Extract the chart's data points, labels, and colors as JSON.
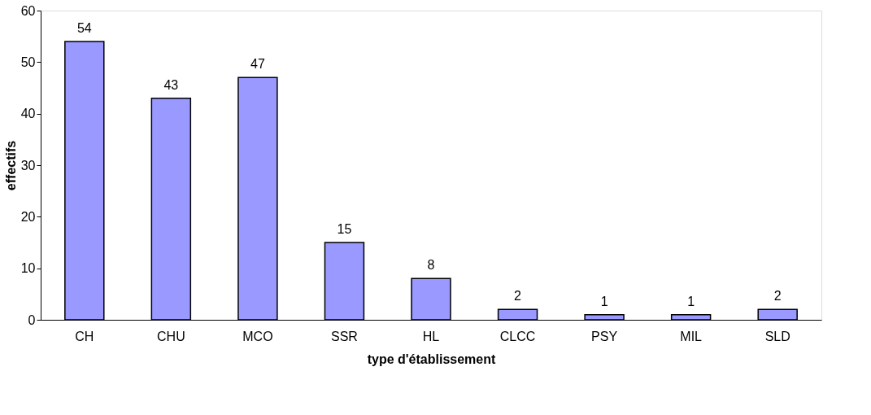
{
  "chart_data": {
    "type": "bar",
    "xlabel": "type d'établissement",
    "ylabel": "effectifs",
    "categories": [
      "CH",
      "CHU",
      "MCO",
      "SSR",
      "HL",
      "CLCC",
      "PSY",
      "MIL",
      "SLD"
    ],
    "values": [
      54,
      43,
      47,
      15,
      8,
      2,
      1,
      1,
      2
    ],
    "color": "#9999ff",
    "ylim": [
      0,
      60
    ],
    "yticks": [
      0,
      10,
      20,
      30,
      40,
      50,
      60
    ],
    "grid": false,
    "data_labels": true
  }
}
